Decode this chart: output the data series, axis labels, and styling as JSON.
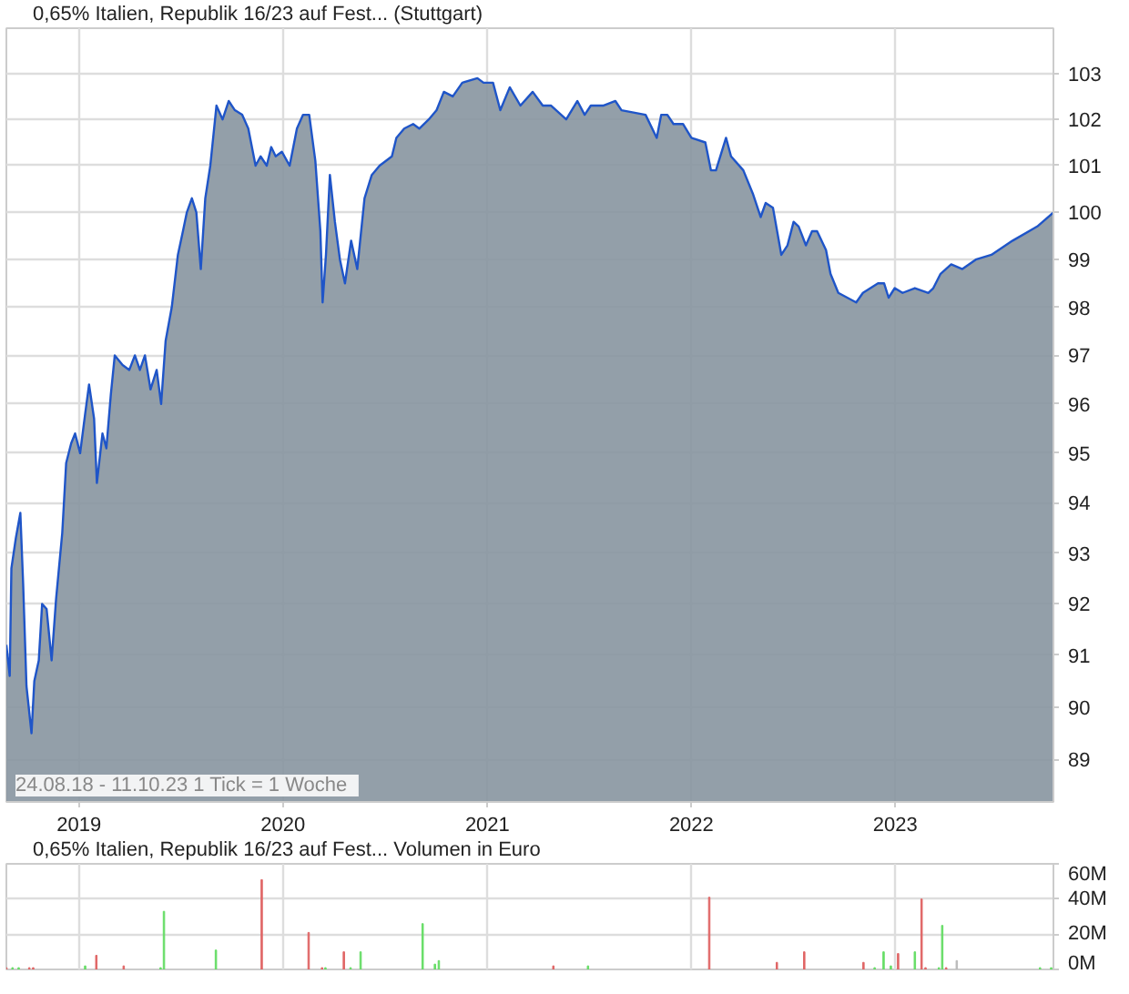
{
  "chart_data": [
    {
      "type": "area",
      "log": true,
      "grid": true,
      "legend": "top left",
      "xlim": [
        "2018-08-24",
        "2023-10-11"
      ],
      "xticks": [
        "2019",
        "2020",
        "2021",
        "2022",
        "2023"
      ],
      "ylim": [
        88.2,
        104
      ],
      "yticks": [
        89,
        90,
        91,
        92,
        93,
        94,
        95,
        96,
        97,
        98,
        99,
        100,
        101,
        102,
        103
      ],
      "annotations": [
        "24.08.18 - 11.10.23   1 Tick = 1 Woche"
      ],
      "x": [
        "2018-08-24",
        "2018-08-30",
        "2018-09-02",
        "2018-09-10",
        "2018-09-18",
        "2018-09-23",
        "2018-09-29",
        "2018-10-08",
        "2018-10-13",
        "2018-10-21",
        "2018-10-27",
        "2018-11-04",
        "2018-11-13",
        "2018-11-21",
        "2018-12-02",
        "2018-12-09",
        "2018-12-18",
        "2018-12-25",
        "2019-01-03",
        "2019-01-12",
        "2019-01-19",
        "2019-01-28",
        "2019-02-02",
        "2019-02-12",
        "2019-02-19",
        "2019-02-27",
        "2019-03-06",
        "2019-03-20",
        "2019-04-01",
        "2019-04-11",
        "2019-04-20",
        "2019-04-29",
        "2019-05-09",
        "2019-05-20",
        "2019-05-28",
        "2019-06-05",
        "2019-06-16",
        "2019-06-27",
        "2019-07-06",
        "2019-07-13",
        "2019-07-22",
        "2019-07-30",
        "2019-08-07",
        "2019-08-15",
        "2019-08-24",
        "2019-09-04",
        "2019-09-15",
        "2019-09-26",
        "2019-10-07",
        "2019-10-20",
        "2019-10-31",
        "2019-11-13",
        "2019-11-22",
        "2019-12-03",
        "2019-12-11",
        "2019-12-19",
        "2019-12-30",
        "2020-01-13",
        "2020-01-26",
        "2020-02-06",
        "2020-02-17",
        "2020-02-28",
        "2020-03-08",
        "2020-03-12",
        "2020-03-18",
        "2020-03-25",
        "2020-04-03",
        "2020-04-12",
        "2020-04-21",
        "2020-05-02",
        "2020-05-13",
        "2020-05-26",
        "2020-06-08",
        "2020-06-22",
        "2020-07-14",
        "2020-07-22",
        "2020-08-05",
        "2020-08-21",
        "2020-09-01",
        "2020-09-18",
        "2020-10-02",
        "2020-10-15",
        "2020-10-31",
        "2020-11-17",
        "2020-12-14",
        "2020-12-25",
        "2021-01-11",
        "2021-01-24",
        "2021-02-10",
        "2021-03-01",
        "2021-03-23",
        "2021-04-10",
        "2021-04-25",
        "2021-05-22",
        "2021-06-11",
        "2021-06-24",
        "2021-07-05",
        "2021-07-27",
        "2021-08-18",
        "2021-08-29",
        "2021-10-11",
        "2021-10-31",
        "2021-11-08",
        "2021-11-19",
        "2021-11-30",
        "2021-12-17",
        "2022-01-01",
        "2022-01-26",
        "2022-02-05",
        "2022-02-14",
        "2022-03-04",
        "2022-03-13",
        "2022-04-04",
        "2022-04-21",
        "2022-05-05",
        "2022-05-14",
        "2022-05-27",
        "2022-06-11",
        "2022-06-22",
        "2022-07-03",
        "2022-07-12",
        "2022-07-25",
        "2022-08-05",
        "2022-08-14",
        "2022-08-30",
        "2022-09-07",
        "2022-09-21",
        "2022-10-07",
        "2022-10-23",
        "2022-11-04",
        "2022-12-01",
        "2022-12-12",
        "2022-12-20",
        "2022-12-31",
        "2023-01-14",
        "2023-02-05",
        "2023-03-01",
        "2023-03-10",
        "2023-03-23",
        "2023-04-11",
        "2023-05-01",
        "2023-05-25",
        "2023-06-22",
        "2023-07-30",
        "2023-09-12",
        "2023-10-11"
      ],
      "series": [
        {
          "name": "0,65% Italien, Republik 16/23 auf Fest... (Stuttgart)",
          "color": "#1f55c8",
          "values": [
            91.2,
            90.6,
            92.7,
            93.3,
            93.8,
            92.4,
            90.4,
            89.5,
            90.5,
            90.9,
            92.0,
            91.9,
            90.9,
            92.1,
            93.4,
            94.8,
            95.2,
            95.4,
            95.0,
            95.8,
            96.4,
            95.7,
            94.4,
            95.4,
            95.1,
            96.2,
            97.0,
            96.8,
            96.7,
            97.0,
            96.7,
            97.0,
            96.3,
            96.7,
            96.0,
            97.3,
            98.0,
            99.1,
            99.6,
            100.0,
            100.3,
            100.0,
            98.8,
            100.3,
            101.0,
            102.3,
            102.0,
            102.4,
            102.2,
            102.1,
            101.8,
            101.0,
            101.2,
            101.0,
            101.4,
            101.2,
            101.3,
            101.0,
            101.8,
            102.1,
            102.1,
            101.1,
            99.6,
            98.1,
            99.1,
            100.8,
            99.8,
            99.0,
            98.5,
            99.4,
            98.8,
            100.3,
            100.8,
            101.0,
            101.2,
            101.6,
            101.8,
            101.9,
            101.8,
            102.0,
            102.2,
            102.6,
            102.5,
            102.8,
            102.9,
            102.8,
            102.8,
            102.2,
            102.7,
            102.3,
            102.6,
            102.3,
            102.3,
            102.0,
            102.4,
            102.1,
            102.3,
            102.3,
            102.4,
            102.2,
            102.1,
            101.6,
            102.1,
            102.1,
            101.9,
            101.9,
            101.6,
            101.5,
            100.9,
            100.9,
            101.6,
            101.2,
            100.9,
            100.4,
            99.9,
            100.2,
            100.1,
            99.1,
            99.3,
            99.8,
            99.7,
            99.3,
            99.6,
            99.6,
            99.2,
            98.7,
            98.3,
            98.2,
            98.1,
            98.3,
            98.5,
            98.5,
            98.2,
            98.4,
            98.3,
            98.4,
            98.3,
            98.4,
            98.7,
            98.9,
            98.8,
            99.0,
            99.1,
            99.4,
            99.7,
            100.0
          ]
        }
      ]
    },
    {
      "type": "bar",
      "grid": true,
      "legend": "top left",
      "tick_labels": "y",
      "xlim": [
        "2018-08-24",
        "2023-10-11"
      ],
      "xticks": [
        "2019",
        "2020",
        "2021",
        "2022",
        "2023"
      ],
      "ylim": [
        0,
        60
      ],
      "yticks": [
        {
          "value": 0,
          "label": "0M"
        },
        {
          "value": 20,
          "label": "20M"
        },
        {
          "value": 40,
          "label": "40M"
        },
        {
          "value": 60,
          "label": "60M"
        }
      ],
      "x": [
        "2018-08-24",
        "2018-09-04",
        "2018-09-15",
        "2018-10-04",
        "2018-10-11",
        "2019-01-12",
        "2019-02-01",
        "2019-03-22",
        "2019-05-27",
        "2019-06-02",
        "2019-09-03",
        "2019-11-24",
        "2020-02-16",
        "2020-03-11",
        "2020-03-17",
        "2020-04-19",
        "2020-05-01",
        "2020-05-19",
        "2020-09-07",
        "2020-09-29",
        "2020-10-06",
        "2021-04-29",
        "2021-06-30",
        "2022-02-02",
        "2022-06-03",
        "2022-07-22",
        "2022-11-05",
        "2022-11-25",
        "2022-12-11",
        "2022-12-24",
        "2023-01-06",
        "2023-02-05",
        "2023-02-17",
        "2023-02-24",
        "2023-03-20",
        "2023-03-26",
        "2023-04-02",
        "2023-04-21",
        "2023-09-17",
        "2023-10-07"
      ],
      "series": [
        {
          "name": "0,65% Italien, Republik 16/23 auf Fest... Volumen in Euro",
          "color": "#66dd66",
          "values": [
            1,
            1,
            1,
            1,
            1,
            2,
            8,
            2,
            1,
            33,
            11,
            51,
            21,
            1,
            1,
            10,
            1,
            10,
            26,
            3,
            5,
            2,
            2,
            41,
            4,
            10,
            4,
            1,
            10,
            2,
            9,
            10,
            40,
            1,
            1,
            25,
            1,
            5,
            1,
            1
          ],
          "colors": [
            "#e06666",
            "#66dd66",
            "#66dd66",
            "#e06666",
            "#e06666",
            "#66dd66",
            "#e06666",
            "#e06666",
            "#66dd66",
            "#66dd66",
            "#66dd66",
            "#e06666",
            "#e06666",
            "#e06666",
            "#66dd66",
            "#e06666",
            "#66dd66",
            "#66dd66",
            "#66dd66",
            "#66dd66",
            "#66dd66",
            "#e06666",
            "#66dd66",
            "#e06666",
            "#e06666",
            "#e06666",
            "#e06666",
            "#66dd66",
            "#66dd66",
            "#66dd66",
            "#e06666",
            "#66dd66",
            "#e06666",
            "#e06666",
            "#66dd66",
            "#66dd66",
            "#e06666",
            "#bbbbbb",
            "#66dd66",
            "#66dd66"
          ]
        }
      ]
    }
  ]
}
